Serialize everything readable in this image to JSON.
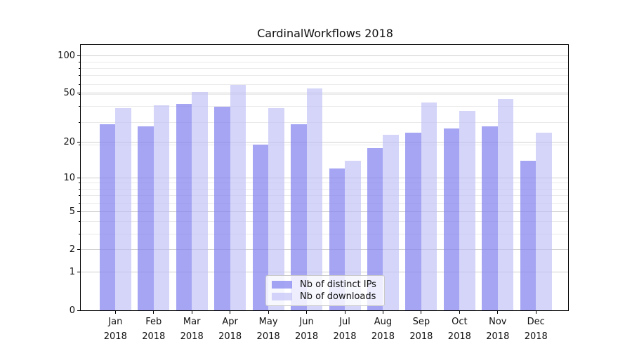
{
  "chart_data": {
    "type": "bar",
    "title": "CardinalWorkflows 2018",
    "categories": [
      "Jan 2018",
      "Feb 2018",
      "Mar 2018",
      "Apr 2018",
      "May 2018",
      "Jun 2018",
      "Jul 2018",
      "Aug 2018",
      "Sep 2018",
      "Oct 2018",
      "Nov 2018",
      "Dec 2018"
    ],
    "series": [
      {
        "name": "Nb of distinct IPs",
        "color": "rgba(130,130,240,0.72)",
        "values": [
          28,
          27,
          41,
          39,
          19,
          28,
          12,
          18,
          24,
          26,
          27,
          14
        ]
      },
      {
        "name": "Nb of downloads",
        "color": "rgba(190,190,248,0.65)",
        "values": [
          38,
          40,
          51,
          58,
          38,
          55,
          14,
          23,
          42,
          36,
          45,
          24
        ]
      }
    ],
    "xlabel": "",
    "ylabel": "",
    "yscale": "log-like (log10 of 1+value), zero shown at axis bottom",
    "y_ticks": [
      0,
      1,
      2,
      5,
      10,
      20,
      50,
      100
    ],
    "y_tick_labels": [
      "0",
      "1",
      "2",
      "5",
      "10",
      "20",
      "50",
      "100"
    ],
    "y_minor_ticks": [
      3,
      4,
      6,
      7,
      8,
      9,
      19,
      29,
      39,
      49,
      59,
      69,
      79,
      89
    ],
    "ylim": [
      0,
      121.5
    ],
    "grid": true,
    "legend_position": "lower center, inside plot, semi-transparent"
  },
  "colors": {
    "major_grid": "#cfcfcf",
    "minor_grid": "#eaeaea",
    "spine": "#000000",
    "text": "#111111",
    "legend_border": "#c9c9c9",
    "legend_background": "rgba(255,255,255,0.8)"
  }
}
